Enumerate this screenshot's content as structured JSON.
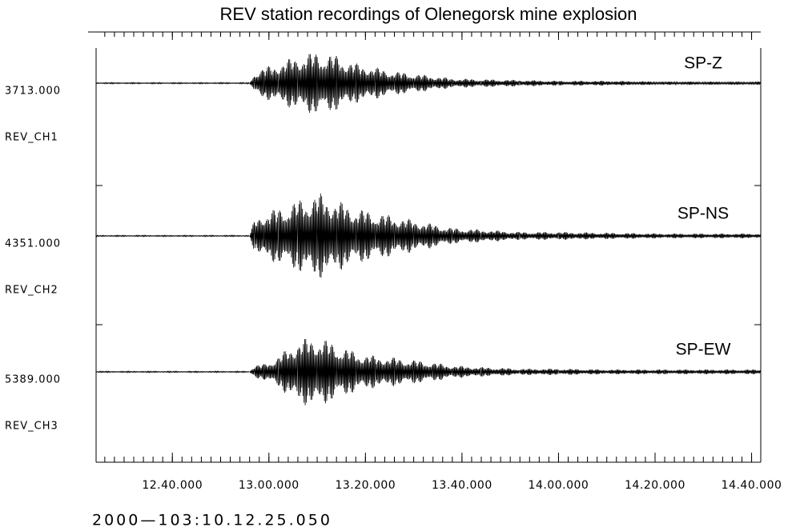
{
  "chart_data": {
    "type": "seismogram",
    "title": "REV station recordings of Olenegorsk mine explosion",
    "start_time": "2000—103:10.12.25.050",
    "xlim": [
      744.2,
      881.9
    ],
    "xticks": [
      {
        "value": 760,
        "label": "12.40.000"
      },
      {
        "value": 780,
        "label": "13.00.000"
      },
      {
        "value": 800,
        "label": "13.20.000"
      },
      {
        "value": 820,
        "label": "13.40.000"
      },
      {
        "value": 840,
        "label": "14.00.000"
      },
      {
        "value": 860,
        "label": "14.20.000"
      },
      {
        "value": 880,
        "label": "14.40.000"
      }
    ],
    "minor_tick_step": 2,
    "color": "#000000",
    "x": [
      744,
      776,
      777,
      779,
      782,
      786,
      790,
      794,
      798,
      802,
      806,
      810,
      814,
      818,
      824,
      832,
      840,
      850,
      862,
      872,
      882
    ],
    "series": [
      {
        "name": "SP-Z",
        "amplitude": "3713.000",
        "channel": "REV_CH1",
        "values": [
          0.8,
          0.8,
          14,
          20,
          25,
          35,
          40,
          35,
          25,
          20,
          15,
          12,
          9,
          6,
          5,
          4,
          3,
          3,
          2,
          2,
          2
        ]
      },
      {
        "name": "SP-NS",
        "amplitude": "4351.000",
        "channel": "REV_CH2",
        "values": [
          0.8,
          0.8,
          20,
          30,
          35,
          45,
          55,
          45,
          35,
          30,
          25,
          20,
          15,
          10,
          8,
          5,
          5,
          4,
          3,
          3,
          3
        ]
      },
      {
        "name": "SP-EW",
        "amplitude": "5389.000",
        "channel": "REV_CH3",
        "values": [
          0.8,
          0.8,
          8,
          10,
          20,
          40,
          45,
          35,
          25,
          20,
          18,
          15,
          12,
          8,
          6,
          4,
          4,
          3,
          3,
          3,
          3
        ]
      }
    ]
  }
}
